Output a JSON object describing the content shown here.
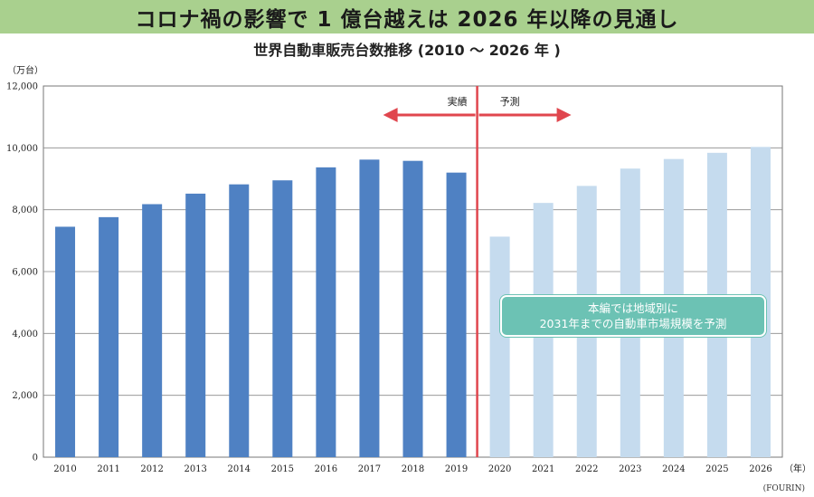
{
  "header": {
    "title": "コロナ禍の影響で 1 億台越えは 2026 年以降の見通し"
  },
  "chart_data": {
    "type": "bar",
    "title": "世界自動車販売台数推移 (2010 ～ 2026 年 )",
    "ylabel": "（万台）",
    "xlabel": "（年）",
    "ylim": [
      0,
      12000
    ],
    "yticks": [
      "0",
      "2,000",
      "4,000",
      "6,000",
      "8,000",
      "10,000",
      "12,000"
    ],
    "categories": [
      "2010",
      "2011",
      "2012",
      "2013",
      "2014",
      "2015",
      "2016",
      "2017",
      "2018",
      "2019",
      "2020",
      "2021",
      "2022",
      "2023",
      "2024",
      "2025",
      "2026"
    ],
    "series": [
      {
        "values": [
          7450,
          7760,
          8180,
          8520,
          8820,
          8950,
          9370,
          9620,
          9580,
          9200,
          7130,
          8220,
          8770,
          9330,
          9640,
          9840,
          10030
        ],
        "actual_count": 10,
        "colors": {
          "actual": "#4f81c3",
          "forecast": "#c5dbee"
        }
      }
    ],
    "divider": {
      "left_label": "実績",
      "right_label": "予測",
      "color": "#e0464e"
    },
    "grid": true,
    "annotation_lines": [
      "本編では地域別に",
      "2031年までの自動車市場規模を予測"
    ],
    "source": "(FOURIN)"
  }
}
